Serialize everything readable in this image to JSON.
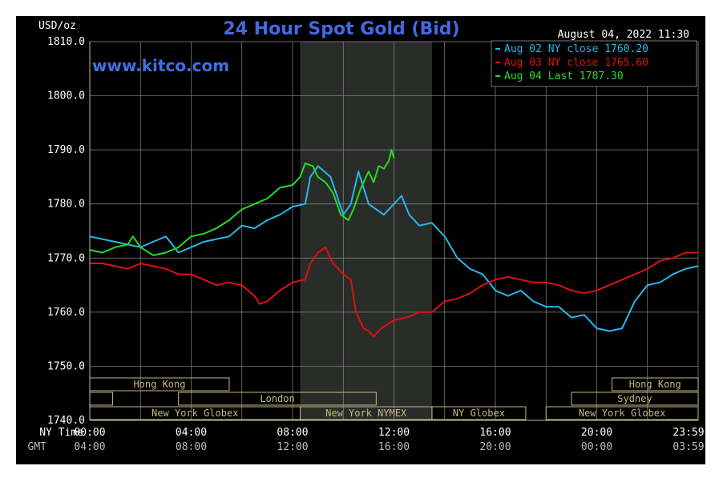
{
  "header": {
    "unit_label": "USD/oz",
    "title": "24 Hour Spot Gold (Bid)",
    "timestamp": "August 04, 2022 11:30",
    "watermark": "www.kitco.com"
  },
  "colors": {
    "background": "#000000",
    "grid": "#8a8a8a",
    "title": "#4169e1",
    "watermark": "#3f6fe0",
    "aug02": "#29b6e8",
    "aug03": "#e01010",
    "aug04": "#22dd22",
    "market_box": "#c8b880",
    "shade": "#2a2c2a"
  },
  "chart_data": {
    "type": "line",
    "title": "24 Hour Spot Gold (Bid)",
    "ylabel": "USD/oz",
    "ylim": [
      1740,
      1810
    ],
    "yticks": [
      "1810.0",
      "1800.0",
      "1790.0",
      "1780.0",
      "1770.0",
      "1760.0",
      "1750.0",
      "1740.0"
    ],
    "ytick_values": [
      1810,
      1800,
      1790,
      1780,
      1770,
      1760,
      1750,
      1740
    ],
    "xlim_hours": [
      0,
      24
    ],
    "x_row_labels": {
      "ny": "NY Time",
      "gmt": "GMT"
    },
    "xticks_ny": [
      "00:00",
      "04:00",
      "08:00",
      "12:00",
      "16:00",
      "20:00",
      "23:59"
    ],
    "xticks_gmt": [
      "04:00",
      "08:00",
      "12:00",
      "16:00",
      "20:00",
      "00:00",
      "03:59"
    ],
    "xtick_hours": [
      0,
      4,
      8,
      12,
      16,
      20,
      24
    ],
    "shaded_hours": [
      8.3,
      13.5
    ],
    "legend": [
      {
        "text": "Aug 02 NY close 1760.20",
        "color": "#29b6e8"
      },
      {
        "text": "Aug 03 NY close 1765.60",
        "color": "#e01010"
      },
      {
        "text": "Aug 04 Last 1787.30",
        "color": "#22dd22"
      }
    ],
    "series": [
      {
        "name": "Aug 02 NY close 1760.20",
        "color": "#29b6e8",
        "points": [
          [
            0,
            1774
          ],
          [
            0.5,
            1773.5
          ],
          [
            1,
            1773
          ],
          [
            1.5,
            1772.5
          ],
          [
            2,
            1772
          ],
          [
            2.5,
            1773
          ],
          [
            3,
            1774
          ],
          [
            3.5,
            1771
          ],
          [
            4,
            1772
          ],
          [
            4.5,
            1773
          ],
          [
            5,
            1773.5
          ],
          [
            5.5,
            1774
          ],
          [
            6,
            1776
          ],
          [
            6.5,
            1775.5
          ],
          [
            7,
            1777
          ],
          [
            7.5,
            1778
          ],
          [
            8,
            1779.5
          ],
          [
            8.5,
            1780
          ],
          [
            8.7,
            1785
          ],
          [
            9,
            1787
          ],
          [
            9.5,
            1785
          ],
          [
            10,
            1778
          ],
          [
            10.3,
            1780
          ],
          [
            10.6,
            1786
          ],
          [
            11,
            1780
          ],
          [
            11.3,
            1779
          ],
          [
            11.6,
            1778
          ],
          [
            12,
            1780
          ],
          [
            12.3,
            1781.5
          ],
          [
            12.6,
            1778
          ],
          [
            13,
            1776
          ],
          [
            13.5,
            1776.5
          ],
          [
            14,
            1774
          ],
          [
            14.5,
            1770
          ],
          [
            15,
            1768
          ],
          [
            15.5,
            1767
          ],
          [
            16,
            1764
          ],
          [
            16.5,
            1763
          ],
          [
            17,
            1764
          ],
          [
            17.5,
            1762
          ],
          [
            18,
            1761
          ],
          [
            18.5,
            1761
          ],
          [
            19,
            1759
          ],
          [
            19.5,
            1759.5
          ],
          [
            20,
            1757
          ],
          [
            20.5,
            1756.5
          ],
          [
            21,
            1757
          ],
          [
            21.5,
            1762
          ],
          [
            22,
            1765
          ],
          [
            22.5,
            1765.5
          ],
          [
            23,
            1767
          ],
          [
            23.5,
            1768
          ],
          [
            24,
            1768.5
          ]
        ]
      },
      {
        "name": "Aug 03 NY close 1765.60",
        "color": "#e01010",
        "points": [
          [
            0,
            1769
          ],
          [
            0.5,
            1769
          ],
          [
            1,
            1768.5
          ],
          [
            1.5,
            1768
          ],
          [
            2,
            1769
          ],
          [
            2.5,
            1768.5
          ],
          [
            3,
            1768
          ],
          [
            3.5,
            1767
          ],
          [
            4,
            1767
          ],
          [
            4.5,
            1766
          ],
          [
            5,
            1765
          ],
          [
            5.5,
            1765.5
          ],
          [
            6,
            1765
          ],
          [
            6.5,
            1763
          ],
          [
            6.7,
            1761.5
          ],
          [
            7,
            1762
          ],
          [
            7.5,
            1764
          ],
          [
            8,
            1765.5
          ],
          [
            8.5,
            1766
          ],
          [
            8.7,
            1769
          ],
          [
            9,
            1771
          ],
          [
            9.3,
            1772
          ],
          [
            9.6,
            1769
          ],
          [
            10,
            1767
          ],
          [
            10.3,
            1766
          ],
          [
            10.5,
            1760
          ],
          [
            10.8,
            1757
          ],
          [
            11,
            1756.5
          ],
          [
            11.2,
            1755.5
          ],
          [
            11.5,
            1757
          ],
          [
            12,
            1758.5
          ],
          [
            12.5,
            1759
          ],
          [
            13,
            1760
          ],
          [
            13.5,
            1760
          ],
          [
            14,
            1762
          ],
          [
            14.5,
            1762.5
          ],
          [
            15,
            1763.5
          ],
          [
            15.5,
            1765
          ],
          [
            16,
            1766
          ],
          [
            16.5,
            1766.5
          ],
          [
            17,
            1766
          ],
          [
            17.5,
            1765.5
          ],
          [
            18,
            1765.5
          ],
          [
            18.5,
            1765
          ],
          [
            19,
            1764
          ],
          [
            19.5,
            1763.5
          ],
          [
            20,
            1764
          ],
          [
            20.5,
            1765
          ],
          [
            21,
            1766
          ],
          [
            21.5,
            1767
          ],
          [
            22,
            1768
          ],
          [
            22.5,
            1769.5
          ],
          [
            23,
            1770
          ],
          [
            23.5,
            1771
          ],
          [
            24,
            1771
          ]
        ]
      },
      {
        "name": "Aug 04 Last 1787.30",
        "color": "#22dd22",
        "points": [
          [
            0,
            1771.5
          ],
          [
            0.5,
            1771
          ],
          [
            1,
            1772
          ],
          [
            1.5,
            1772.5
          ],
          [
            1.7,
            1774
          ],
          [
            2,
            1772
          ],
          [
            2.5,
            1770.5
          ],
          [
            3,
            1771
          ],
          [
            3.5,
            1772
          ],
          [
            4,
            1774
          ],
          [
            4.5,
            1774.5
          ],
          [
            5,
            1775.5
          ],
          [
            5.5,
            1777
          ],
          [
            6,
            1779
          ],
          [
            6.5,
            1780
          ],
          [
            7,
            1781
          ],
          [
            7.5,
            1783
          ],
          [
            8,
            1783.5
          ],
          [
            8.3,
            1785
          ],
          [
            8.5,
            1787.5
          ],
          [
            8.8,
            1787
          ],
          [
            9,
            1785
          ],
          [
            9.3,
            1784
          ],
          [
            9.6,
            1782
          ],
          [
            9.9,
            1778
          ],
          [
            10.2,
            1777
          ],
          [
            10.4,
            1779
          ],
          [
            10.7,
            1783
          ],
          [
            11,
            1786
          ],
          [
            11.2,
            1784
          ],
          [
            11.4,
            1787
          ],
          [
            11.6,
            1786.5
          ],
          [
            11.8,
            1788
          ],
          [
            11.9,
            1790
          ],
          [
            12,
            1788.5
          ]
        ]
      }
    ]
  },
  "markets": [
    {
      "label": "Hong Kong",
      "row": 0,
      "start": 0,
      "end": 5.5
    },
    {
      "label": "Hong Kong",
      "row": 0,
      "start": 20.6,
      "end": 24
    },
    {
      "label": "",
      "row": 1,
      "start": 0,
      "end": 0.9
    },
    {
      "label": "London",
      "row": 1,
      "start": 3.5,
      "end": 11.3
    },
    {
      "label": "Sydney",
      "row": 1,
      "start": 19,
      "end": 24
    },
    {
      "label": "New York Globex",
      "row": 2,
      "start": 0,
      "end": 8.3
    },
    {
      "label": "New York NYMEX",
      "row": 2,
      "start": 8.3,
      "end": 13.5
    },
    {
      "label": "NY Globex",
      "row": 2,
      "start": 13.5,
      "end": 17.2
    },
    {
      "label": "New York Globex",
      "row": 2,
      "start": 18,
      "end": 24
    }
  ]
}
